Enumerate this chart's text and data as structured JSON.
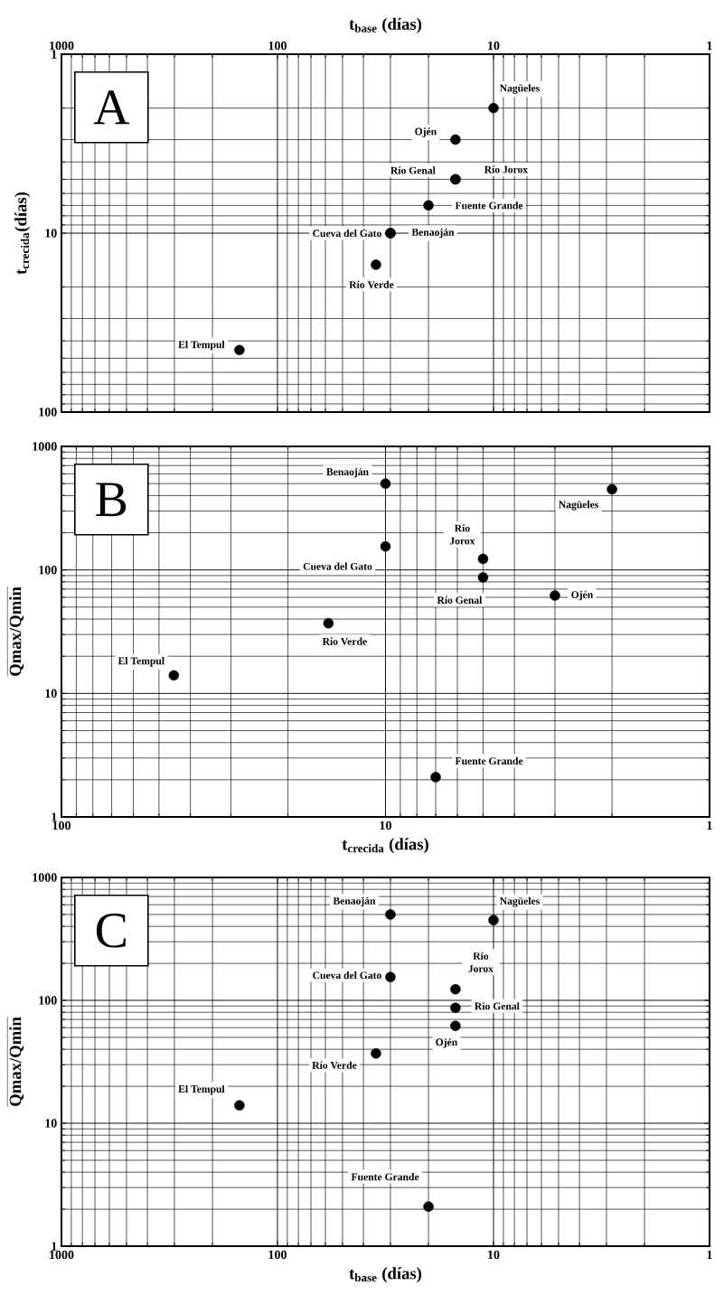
{
  "chart_data": [
    {
      "type": "scatter",
      "title": "A",
      "xlabel": "t$_{base}$ (días)",
      "ylabel": "t$_{crecida}$(días)",
      "x": [
        10,
        15,
        15,
        15,
        20,
        30,
        30,
        35,
        150
      ],
      "values": [
        2,
        3,
        5,
        5,
        7,
        10,
        10,
        15,
        45
      ],
      "color": "#000000",
      "marker": "circle",
      "log": "xy",
      "grid": true,
      "xlim": [
        1000,
        1
      ],
      "ylim": [
        100,
        1
      ],
      "xticks": [
        1000,
        100,
        10,
        1
      ],
      "yticks": [
        1,
        10,
        100
      ],
      "annotations": [
        {
          "text": "Nagüeles",
          "x": 10,
          "y": 2
        },
        {
          "text": "Ojén",
          "x": 15,
          "y": 3
        },
        {
          "text": "Río Genal",
          "x": 15,
          "y": 5
        },
        {
          "text": "Río Jorox",
          "x": 15,
          "y": 5
        },
        {
          "text": "Fuente Grande",
          "x": 20,
          "y": 7
        },
        {
          "text": "Cueva del Gato",
          "x": 30,
          "y": 10
        },
        {
          "text": "Benaoján",
          "x": 30,
          "y": 10
        },
        {
          "text": "Río Verde",
          "x": 35,
          "y": 15
        },
        {
          "text": "El Tempul",
          "x": 150,
          "y": 45
        }
      ]
    },
    {
      "type": "scatter",
      "title": "B",
      "xlabel": "t$_{crecida}$ (días)",
      "ylabel": "Qmax/Qmin",
      "x": [
        2,
        3,
        5,
        5,
        7,
        10,
        10,
        15,
        45
      ],
      "values": [
        450,
        62,
        87,
        123,
        2.1,
        155,
        500,
        37,
        14
      ],
      "color": "#000000",
      "marker": "circle",
      "log": "xy",
      "grid": true,
      "xlim": [
        100,
        1
      ],
      "ylim": [
        1,
        1000
      ],
      "xticks": [
        100,
        10,
        1
      ],
      "yticks": [
        1,
        10,
        100,
        1000
      ],
      "annotations": [
        {
          "text": "Nagüeles",
          "x": 2,
          "y": 450
        },
        {
          "text": "Ojén",
          "x": 3,
          "y": 62
        },
        {
          "text": "Río Genal",
          "x": 5,
          "y": 87
        },
        {
          "text": "Río Jorox",
          "x": 5,
          "y": 123
        },
        {
          "text": "Fuente Grande",
          "x": 7,
          "y": 2.1
        },
        {
          "text": "Cueva del Gato",
          "x": 10,
          "y": 155
        },
        {
          "text": "Benaoján",
          "x": 10,
          "y": 500
        },
        {
          "text": "Río Verde",
          "x": 15,
          "y": 37
        },
        {
          "text": "El Tempul",
          "x": 45,
          "y": 14
        }
      ]
    },
    {
      "type": "scatter",
      "title": "C",
      "xlabel": "t$_{base}$ (días)",
      "ylabel": "Qmax/Qmin",
      "x": [
        10,
        15,
        15,
        15,
        20,
        30,
        30,
        35,
        150
      ],
      "values": [
        450,
        62,
        87,
        123,
        2.1,
        155,
        500,
        37,
        14
      ],
      "color": "#000000",
      "marker": "circle",
      "log": "xy",
      "grid": true,
      "xlim": [
        1000,
        1
      ],
      "ylim": [
        1,
        1000
      ],
      "xticks": [
        1000,
        100,
        10,
        1
      ],
      "yticks": [
        1,
        10,
        100,
        1000
      ],
      "annotations": [
        {
          "text": "Nagüeles",
          "x": 10,
          "y": 450
        },
        {
          "text": "Ojén",
          "x": 15,
          "y": 62
        },
        {
          "text": "Río Genal",
          "x": 15,
          "y": 87
        },
        {
          "text": "Río Jorox",
          "x": 15,
          "y": 123
        },
        {
          "text": "Fuente Grande",
          "x": 20,
          "y": 2.1
        },
        {
          "text": "Cueva del Gato",
          "x": 30,
          "y": 155
        },
        {
          "text": "Benaoján",
          "x": 30,
          "y": 500
        },
        {
          "text": "Río Verde",
          "x": 35,
          "y": 37
        },
        {
          "text": "El Tempul",
          "x": 150,
          "y": 14
        }
      ]
    }
  ]
}
